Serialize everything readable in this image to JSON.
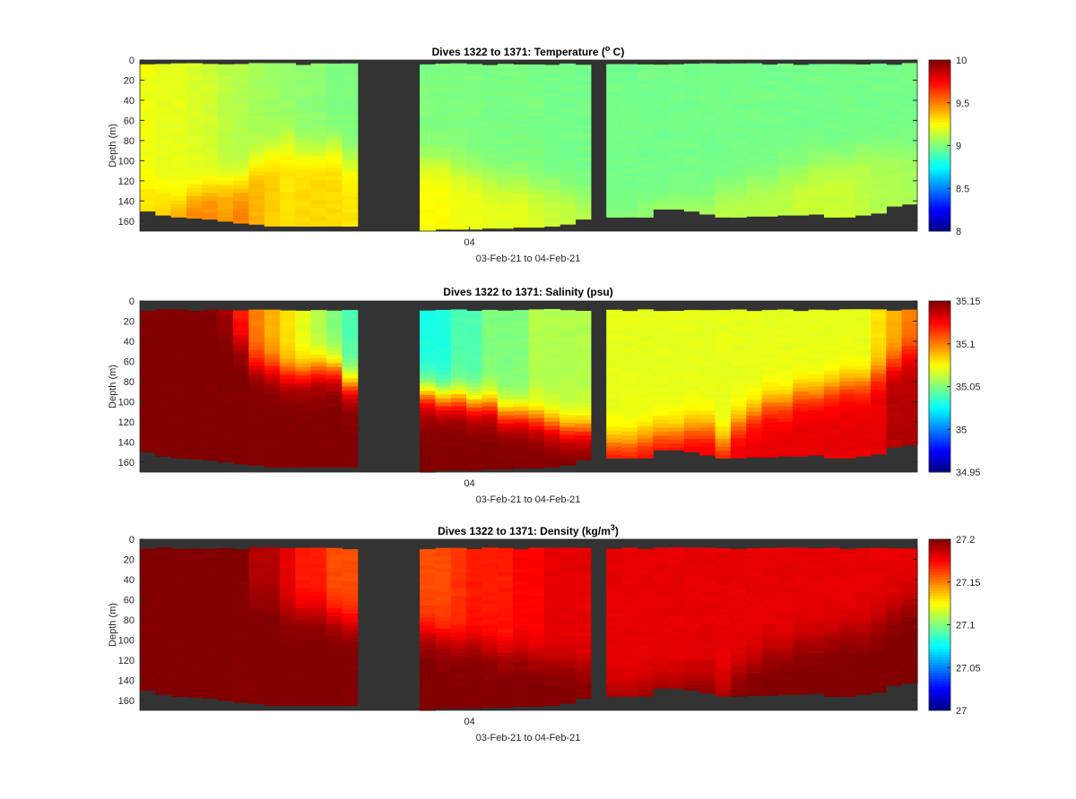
{
  "chart_data": [
    {
      "type": "heatmap",
      "variable": "temperature",
      "title": {
        "pre": "Dives 1322 to 1371: Temperature (",
        "sup": "o",
        "post": " C)"
      },
      "ylabel": "Depth (m)",
      "xlabel": "03-Feb-21 to 04-Feb-21",
      "xtick": {
        "label": "04",
        "dive": 1343.2
      },
      "ylim": [
        0,
        170
      ],
      "yticks": [
        0,
        20,
        40,
        60,
        80,
        100,
        120,
        140,
        160
      ],
      "clim": [
        8,
        10
      ],
      "cticks": [
        "8",
        "8.5",
        "9",
        "9.5",
        "10"
      ],
      "surface_start": 3,
      "top": [
        9.22,
        9.2,
        9.2,
        9.18,
        9.16,
        9.12,
        9.1,
        9.08,
        9.06,
        9.04,
        9.03,
        9.02,
        9.0,
        9.0,
        9.0,
        9.0,
        9.0,
        9.0,
        8.99,
        8.99,
        8.99,
        8.99,
        8.98,
        8.98,
        8.98,
        8.98,
        8.98,
        8.98,
        8.98,
        8.98,
        8.98,
        8.98,
        8.98,
        8.98,
        8.98,
        8.98,
        8.98,
        8.98,
        8.98,
        8.98,
        8.98,
        8.98,
        8.98,
        8.98,
        8.98
      ],
      "bottom": [
        9.3,
        9.35,
        9.45,
        9.5,
        9.5,
        9.45,
        9.5,
        9.4,
        9.35,
        9.3,
        9.32,
        9.33,
        9.32,
        9.3,
        9.25,
        9.25,
        9.22,
        9.22,
        9.2,
        9.2,
        9.2,
        9.18,
        9.15,
        9.15,
        9.12,
        9.05,
        9.05,
        9.05,
        9.08,
        9.08,
        9.1,
        9.1,
        9.12,
        9.12,
        9.12,
        9.12,
        9.12,
        9.15,
        9.15,
        9.15,
        9.15,
        9.12,
        9.1,
        9.1,
        9.08
      ],
      "transition_depth": [
        120,
        130,
        140,
        130,
        125,
        120,
        120,
        100,
        90,
        80,
        90,
        90,
        85,
        100,
        100,
        100,
        105,
        110,
        115,
        120,
        120,
        125,
        125,
        130,
        135,
        150,
        150,
        140,
        140,
        140,
        140,
        140,
        130,
        130,
        120,
        120,
        110,
        110,
        100,
        100,
        100,
        90,
        90,
        90,
        90
      ]
    },
    {
      "type": "heatmap",
      "variable": "salinity",
      "title": {
        "pre": "Dives 1322 to 1371: Salinity (psu)",
        "sup": "",
        "post": ""
      },
      "ylabel": "Depth (m)",
      "xlabel": "03-Feb-21 to 04-Feb-21",
      "xtick": {
        "label": "04",
        "dive": 1343.2
      },
      "ylim": [
        0,
        170
      ],
      "yticks": [
        0,
        20,
        40,
        60,
        80,
        100,
        120,
        140,
        160
      ],
      "clim": [
        34.95,
        35.15
      ],
      "cticks": [
        "34.95",
        "35",
        "35.05",
        "35.1",
        "35.15"
      ],
      "surface_start": 8,
      "top": [
        35.15,
        35.15,
        35.15,
        35.15,
        35.15,
        35.14,
        35.12,
        35.1,
        35.09,
        35.08,
        35.07,
        35.06,
        35.05,
        35.04,
        35.03,
        35.03,
        35.04,
        35.04,
        35.05,
        35.05,
        35.05,
        35.06,
        35.06,
        35.06,
        35.06,
        35.07,
        35.07,
        35.07,
        35.07,
        35.07,
        35.07,
        35.07,
        35.07,
        35.07,
        35.07,
        35.07,
        35.07,
        35.07,
        35.07,
        35.07,
        35.07,
        35.07,
        35.08,
        35.09,
        35.1
      ],
      "bottom": [
        35.15,
        35.15,
        35.15,
        35.15,
        35.15,
        35.15,
        35.15,
        35.15,
        35.15,
        35.15,
        35.15,
        35.15,
        35.15,
        35.15,
        35.15,
        35.15,
        35.15,
        35.15,
        35.15,
        35.15,
        35.15,
        35.15,
        35.15,
        35.15,
        35.15,
        35.13,
        35.13,
        35.13,
        35.13,
        35.13,
        35.13,
        35.13,
        35.13,
        35.13,
        35.13,
        35.13,
        35.13,
        35.13,
        35.13,
        35.13,
        35.13,
        35.13,
        35.13,
        35.14,
        35.14
      ],
      "transition_depth": [
        0,
        0,
        0,
        0,
        0,
        20,
        40,
        60,
        65,
        70,
        70,
        65,
        65,
        80,
        90,
        95,
        95,
        100,
        100,
        110,
        110,
        115,
        120,
        125,
        125,
        140,
        140,
        135,
        130,
        130,
        125,
        125,
        140,
        120,
        110,
        100,
        100,
        90,
        90,
        85,
        80,
        80,
        70,
        60,
        50
      ]
    },
    {
      "type": "heatmap",
      "variable": "density",
      "title": {
        "pre": "Dives 1322 to 1371: Density (kg/m",
        "sup": "3",
        "post": ")"
      },
      "ylabel": "Depth (m)",
      "xlabel": "03-Feb-21 to 04-Feb-21",
      "xtick": {
        "label": "04",
        "dive": 1343.2
      },
      "ylim": [
        0,
        170
      ],
      "yticks": [
        0,
        20,
        40,
        60,
        80,
        100,
        120,
        140,
        160
      ],
      "clim": [
        27,
        27.2
      ],
      "cticks": [
        "27",
        "27.05",
        "27.1",
        "27.15",
        "27.2"
      ],
      "surface_start": 8,
      "top": [
        27.2,
        27.2,
        27.2,
        27.2,
        27.2,
        27.2,
        27.2,
        27.19,
        27.19,
        27.18,
        27.17,
        27.17,
        27.16,
        27.16,
        27.16,
        27.16,
        27.165,
        27.17,
        27.17,
        27.17,
        27.175,
        27.175,
        27.18,
        27.18,
        27.18,
        27.18,
        27.18,
        27.18,
        27.18,
        27.18,
        27.18,
        27.18,
        27.18,
        27.18,
        27.18,
        27.18,
        27.18,
        27.18,
        27.18,
        27.18,
        27.18,
        27.18,
        27.18,
        27.18,
        27.18
      ],
      "bottom": [
        27.2,
        27.2,
        27.2,
        27.2,
        27.2,
        27.2,
        27.2,
        27.2,
        27.2,
        27.2,
        27.2,
        27.2,
        27.2,
        27.2,
        27.2,
        27.2,
        27.2,
        27.2,
        27.2,
        27.2,
        27.2,
        27.2,
        27.2,
        27.2,
        27.2,
        27.2,
        27.2,
        27.2,
        27.2,
        27.2,
        27.2,
        27.2,
        27.2,
        27.2,
        27.2,
        27.2,
        27.2,
        27.2,
        27.2,
        27.2,
        27.2,
        27.2,
        27.2,
        27.2,
        27.2
      ],
      "transition_depth": [
        0,
        0,
        0,
        0,
        0,
        0,
        0,
        60,
        60,
        70,
        70,
        70,
        75,
        80,
        90,
        95,
        100,
        100,
        105,
        110,
        110,
        115,
        120,
        120,
        125,
        150,
        150,
        145,
        140,
        140,
        135,
        135,
        150,
        130,
        120,
        110,
        110,
        100,
        100,
        95,
        90,
        90,
        80,
        70,
        60
      ]
    }
  ],
  "dives": [
    1322,
    1323,
    1324,
    1325,
    1326,
    1327,
    1328,
    1329,
    1330,
    1331,
    1332,
    1333,
    1334,
    1335,
    1340,
    1341,
    1342,
    1343,
    1344,
    1345,
    1346,
    1347,
    1348,
    1349,
    1350,
    1352,
    1353,
    1354,
    1355,
    1356,
    1357,
    1358,
    1359,
    1360,
    1361,
    1362,
    1363,
    1364,
    1365,
    1366,
    1367,
    1368,
    1369,
    1370,
    1371
  ],
  "dive_range": [
    1322,
    1371
  ],
  "max_depth": [
    150,
    154,
    156,
    157,
    158,
    160,
    162,
    163,
    165,
    165,
    165,
    165,
    165,
    165,
    170,
    168,
    168,
    168,
    167,
    167,
    166,
    166,
    165,
    163,
    158,
    156,
    156,
    156,
    148,
    148,
    150,
    153,
    156,
    156,
    155,
    155,
    154,
    154,
    153,
    156,
    156,
    154,
    152,
    145,
    143
  ],
  "colors": {
    "background": "#333333",
    "axis": "#262626"
  }
}
